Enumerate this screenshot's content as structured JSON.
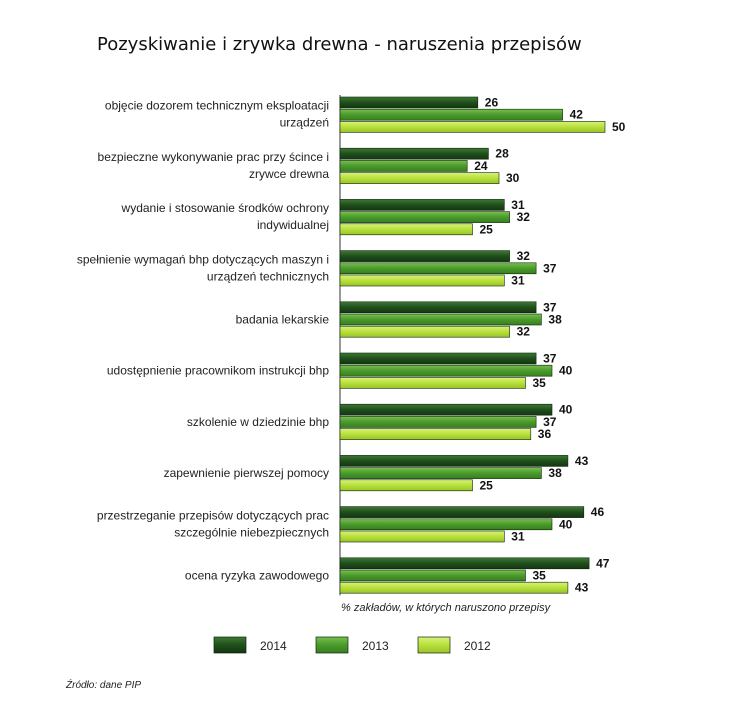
{
  "chart_data": {
    "type": "bar",
    "orientation": "horizontal",
    "title": "Pozyskiwanie i zrywka drewna - naruszenia przepisów",
    "xlabel": "% zakładów, w których naruszono przepisy",
    "categories": [
      [
        "objęcie dozorem technicznym eksploatacji",
        "urządzeń"
      ],
      [
        "bezpieczne wykonywanie prac przy ścince i",
        "zrywce drewna"
      ],
      [
        "wydanie i stosowanie środków ochrony",
        "indywidualnej"
      ],
      [
        "spełnienie wymagań bhp dotyczących maszyn i",
        "urządzeń technicznych"
      ],
      [
        "badania lekarskie"
      ],
      [
        "udostępnienie pracownikom instrukcji bhp"
      ],
      [
        "szkolenie w dziedzinie bhp"
      ],
      [
        "zapewnienie pierwszej pomocy"
      ],
      [
        "przestrzeganie przepisów dotyczących prac",
        "szczególnie niebezpiecznych"
      ],
      [
        "ocena ryzyka zawodowego"
      ]
    ],
    "series": [
      {
        "name": "2014",
        "color": "#1f4f1c",
        "values": [
          26,
          28,
          31,
          32,
          37,
          37,
          40,
          43,
          46,
          47
        ]
      },
      {
        "name": "2013",
        "color": "#4a9a2c",
        "values": [
          42,
          24,
          32,
          37,
          38,
          40,
          37,
          38,
          40,
          35
        ]
      },
      {
        "name": "2012",
        "color": "#b8e03c",
        "values": [
          50,
          30,
          25,
          31,
          32,
          35,
          36,
          25,
          31,
          43
        ]
      }
    ],
    "legend_position": "bottom",
    "grid": false,
    "source": "Źródło: dane PIP"
  }
}
